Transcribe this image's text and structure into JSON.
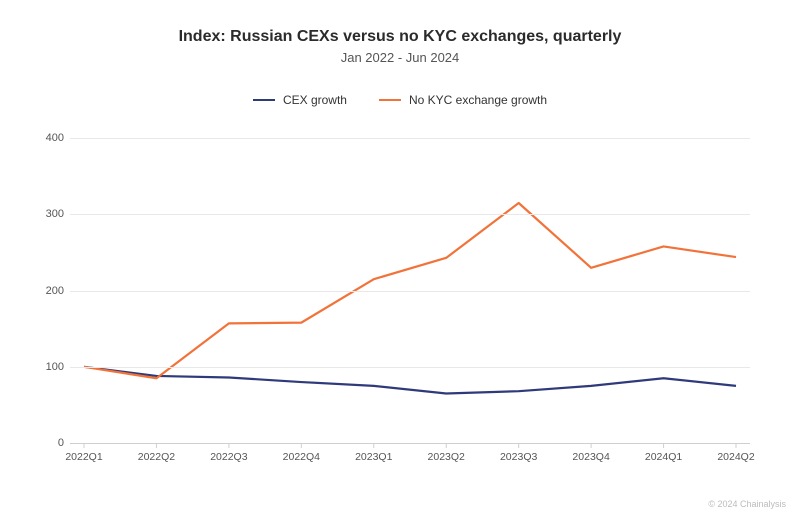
{
  "title": "Index: Russian CEXs versus no KYC exchanges, quarterly",
  "subtitle": "Jan 2022 - Jun 2024",
  "legend": {
    "series1_label": "CEX growth",
    "series2_label": "No KYC exchange growth"
  },
  "chart": {
    "type": "line",
    "background_color": "#ffffff",
    "grid_color": "#e8e8e8",
    "axis_color": "#cfcfcf",
    "text_color": "#555555",
    "title_color": "#2b2b2b",
    "title_fontsize": 16,
    "subtitle_fontsize": 13,
    "label_fontsize": 11,
    "line_width": 2.2,
    "categories": [
      "2022Q1",
      "2022Q2",
      "2022Q3",
      "2022Q4",
      "2023Q1",
      "2023Q2",
      "2023Q3",
      "2023Q4",
      "2024Q1",
      "2024Q2"
    ],
    "ylim": [
      0,
      420
    ],
    "yticks": [
      0,
      100,
      200,
      300,
      400
    ],
    "series": [
      {
        "name": "CEX growth",
        "color": "#2f3a7a",
        "values": [
          100,
          88,
          86,
          80,
          75,
          65,
          68,
          75,
          85,
          75
        ]
      },
      {
        "name": "No KYC exchange growth",
        "color": "#f2733a",
        "values": [
          100,
          85,
          157,
          158,
          215,
          243,
          315,
          230,
          258,
          244
        ]
      }
    ]
  },
  "copyright": "© 2024 Chainalysis"
}
